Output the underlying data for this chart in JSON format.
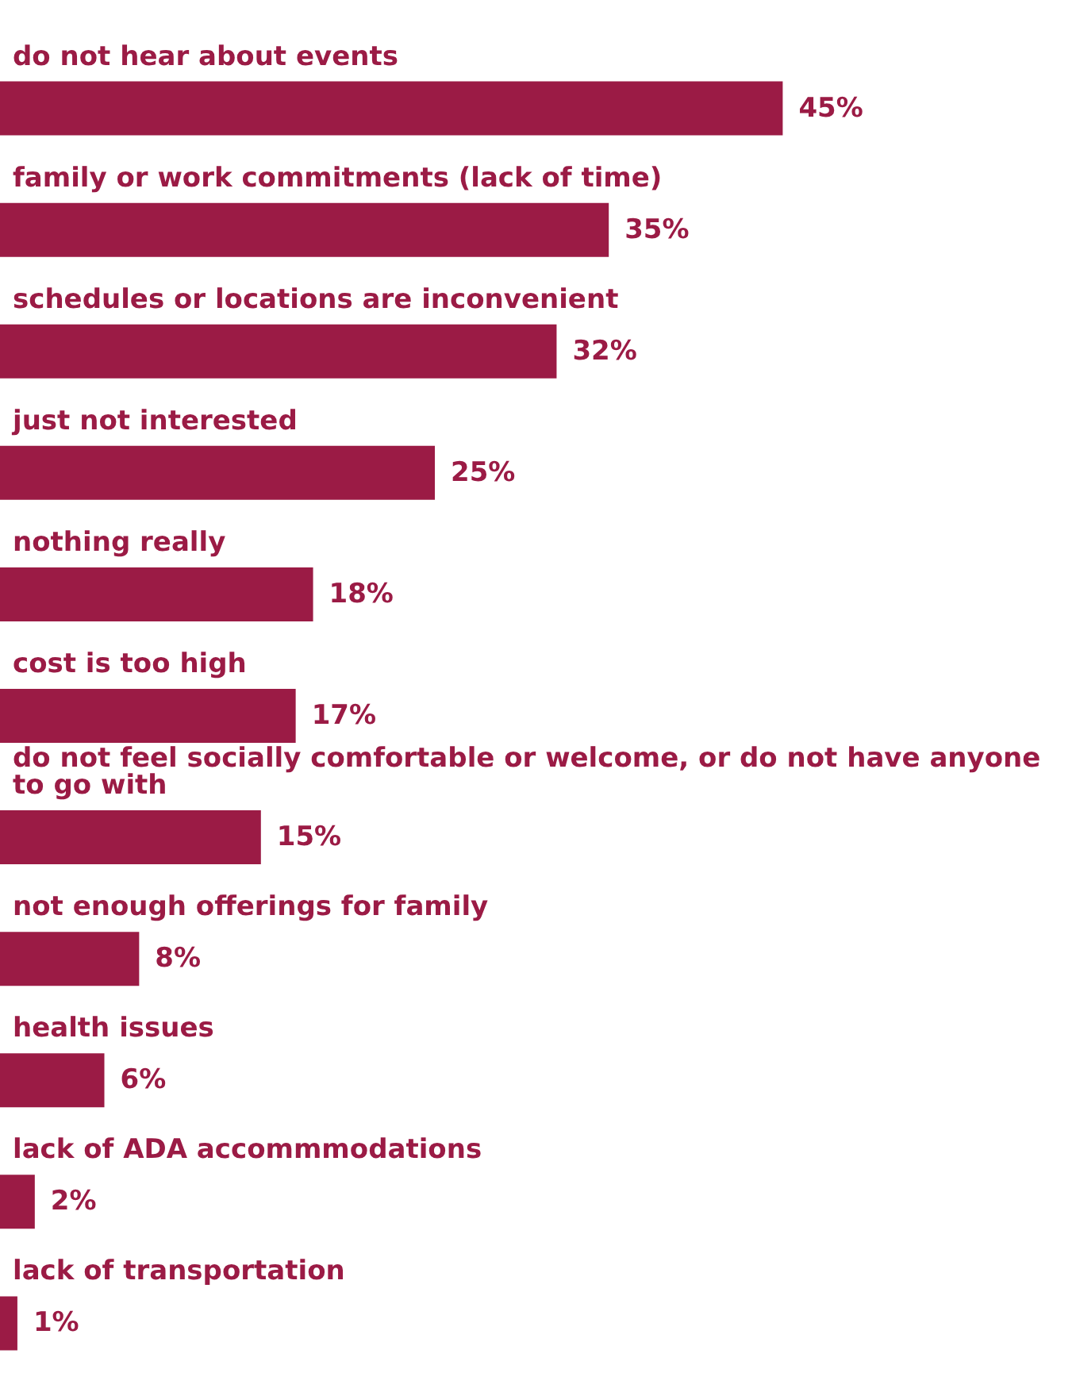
{
  "chart_data": {
    "type": "bar",
    "orientation": "horizontal",
    "categories": [
      "do not hear about events",
      "family or work commitments (lack of time)",
      "schedules or locations are inconvenient",
      "just not interested",
      "nothing really",
      "cost is too high",
      "do not feel socially comfortable or welcome, or do not have anyone to go with",
      "not enough offerings for family",
      "health issues",
      "lack of ADA accommmodations",
      "lack of transportation"
    ],
    "values": [
      45,
      35,
      32,
      25,
      18,
      17,
      15,
      8,
      6,
      2,
      1
    ],
    "value_labels": [
      "45%",
      "35%",
      "32%",
      "25%",
      "18%",
      "17%",
      "15%",
      "8%",
      "6%",
      "2%",
      "1%"
    ],
    "color": "#9b1b45"
  }
}
